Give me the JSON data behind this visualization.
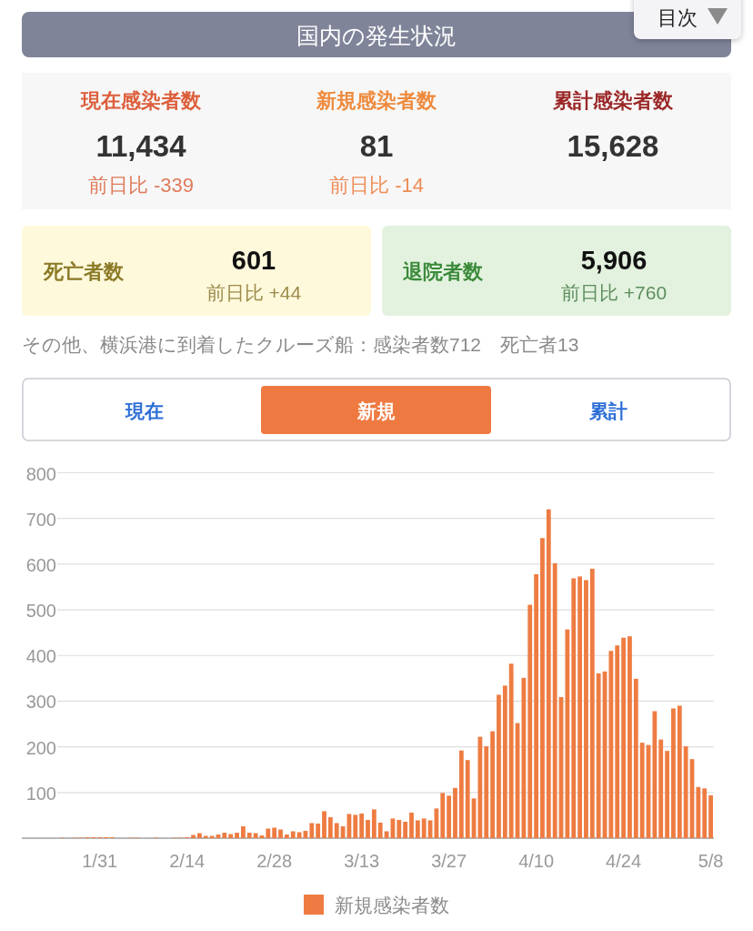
{
  "chart_data": [
    {
      "type": "other",
      "title": "国内の発生状況",
      "annotations": [
        "現在感染者数",
        "11,434",
        "前日比 -339",
        "新規感染者数",
        "81",
        "前日比 -14",
        "累計感染者数",
        "15,628",
        "死亡者数",
        "601",
        "前日比 +44",
        "退院者数",
        "5,906",
        "前日比 +760",
        "その他、横浜港に到着したクルーズ船：感染者数712　死亡者13",
        "現在",
        "新規",
        "累計",
        "目次"
      ]
    },
    {
      "type": "bar",
      "categories": [
        null,
        null,
        null,
        null,
        null,
        null,
        null,
        null,
        null,
        null,
        null,
        null,
        "1/31",
        null,
        null,
        null,
        null,
        null,
        null,
        null,
        null,
        null,
        null,
        null,
        null,
        null,
        "2/14",
        null,
        null,
        null,
        null,
        null,
        null,
        null,
        null,
        null,
        null,
        null,
        null,
        null,
        "2/28",
        null,
        null,
        null,
        null,
        null,
        null,
        null,
        null,
        null,
        null,
        null,
        null,
        null,
        "3/13",
        null,
        null,
        null,
        null,
        null,
        null,
        null,
        null,
        null,
        null,
        null,
        null,
        null,
        "3/27",
        null,
        null,
        null,
        null,
        null,
        null,
        null,
        null,
        null,
        null,
        null,
        null,
        null,
        "4/10",
        null,
        null,
        null,
        null,
        null,
        null,
        null,
        null,
        null,
        null,
        null,
        null,
        null,
        "4/24",
        null,
        null,
        null,
        null,
        null,
        null,
        null,
        null,
        null,
        null,
        null,
        null,
        null,
        "5/8"
      ],
      "series": [
        {
          "name": "新規感染者数",
          "color": "#ee7c42",
          "values": [
            0,
            0,
            0,
            0,
            0,
            0,
            1,
            0,
            1,
            1,
            2,
            2,
            2,
            2,
            2,
            0,
            0,
            1,
            1,
            0,
            0,
            1,
            0,
            0,
            1,
            1,
            2,
            7,
            11,
            5,
            5,
            8,
            12,
            9,
            12,
            26,
            12,
            11,
            6,
            21,
            23,
            19,
            8,
            15,
            13,
            16,
            33,
            32,
            59,
            46,
            33,
            26,
            53,
            51,
            54,
            40,
            63,
            34,
            15,
            43,
            40,
            36,
            56,
            39,
            43,
            39,
            65,
            99,
            93,
            110,
            192,
            171,
            87,
            222,
            201,
            234,
            314,
            334,
            382,
            252,
            351,
            511,
            578,
            657,
            720,
            602,
            309,
            457,
            569,
            573,
            565,
            590,
            361,
            365,
            410,
            422,
            439,
            442,
            349,
            209,
            204,
            278,
            216,
            191,
            284,
            290,
            201,
            173,
            112,
            109,
            94
          ]
        }
      ],
      "ylim": [
        0,
        800
      ],
      "yticks": [
        100,
        200,
        300,
        400,
        500,
        600,
        700,
        800
      ],
      "grid": "y",
      "legend": "bottom"
    }
  ]
}
